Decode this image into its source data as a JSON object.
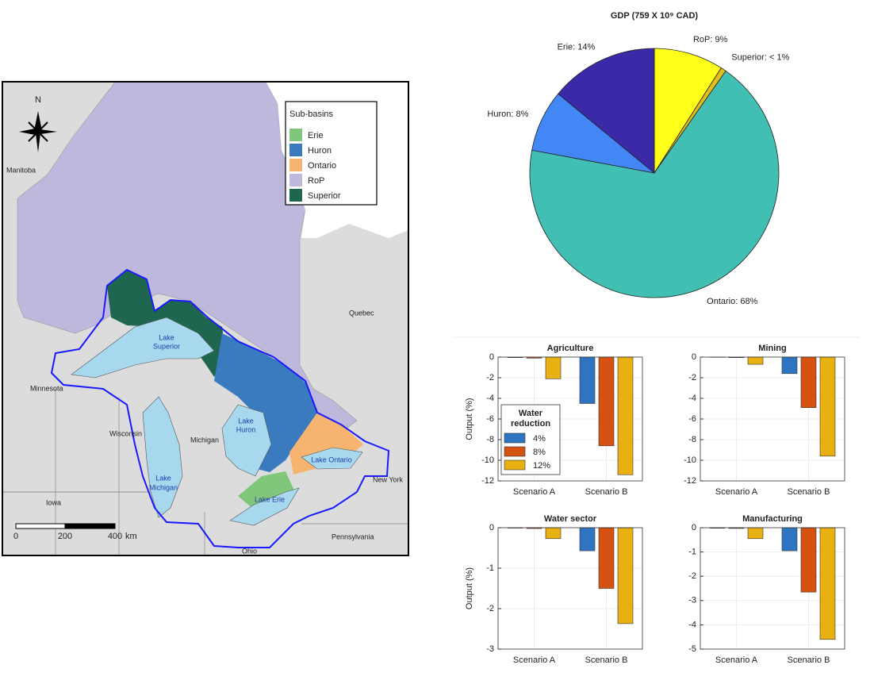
{
  "map": {
    "legend_title": "Sub-basins",
    "legend": [
      {
        "name": "Erie",
        "color": "#80c77c"
      },
      {
        "name": "Huron",
        "color": "#3a7bc0"
      },
      {
        "name": "Ontario",
        "color": "#f7b470"
      },
      {
        "name": "RoP",
        "color": "#bdb8dc"
      },
      {
        "name": "Superior",
        "color": "#1f6650"
      }
    ],
    "compass": "N",
    "places": [
      "Manitoba",
      "Quebec",
      "Minnesota",
      "Wisconsin",
      "Michigan",
      "Iowa",
      "New York",
      "Pennsylvania",
      "Ohio"
    ],
    "lakes": [
      [
        "Lake",
        "Superior"
      ],
      [
        "Lake",
        "Huron"
      ],
      [
        "Lake",
        "Michigan"
      ],
      [
        "Lake Ontario"
      ],
      [
        "Lake Erie"
      ]
    ],
    "scale": {
      "ticks": [
        0,
        200,
        400
      ],
      "unit": "km"
    }
  },
  "chart_data": [
    {
      "type": "pie",
      "title": "GDP (759 X 10⁹ CAD)",
      "categories": [
        "RoP",
        "Superior",
        "Ontario",
        "Huron",
        "Erie"
      ],
      "values": [
        9,
        0.7,
        68,
        8,
        14
      ],
      "value_labels": [
        "RoP: 9%",
        "Superior: < 1%",
        "Ontario: 68%",
        "Huron: 8%",
        "Erie: 14%"
      ],
      "colors": [
        "#ffff1a",
        "#e2bd1c",
        "#41bfb3",
        "#4287f5",
        "#3a2aa8"
      ]
    },
    {
      "type": "bar",
      "title": "Agriculture",
      "ylabel": "Output (%)",
      "categories": [
        "Scenario A",
        "Scenario B"
      ],
      "series": [
        {
          "name": "4%",
          "color": "#2e74c0",
          "values": [
            -0.05,
            -4.5
          ]
        },
        {
          "name": "8%",
          "color": "#d65210",
          "values": [
            -0.1,
            -8.6
          ]
        },
        {
          "name": "12%",
          "color": "#e8b010",
          "values": [
            -2.1,
            -11.4
          ]
        }
      ],
      "legend_title": [
        "Water",
        "reduction"
      ],
      "legend": "lower left",
      "ylim": [
        -12,
        0
      ],
      "yticks": [
        0,
        -2,
        -4,
        -6,
        -8,
        -10,
        -12
      ],
      "grid": true
    },
    {
      "type": "bar",
      "title": "Mining",
      "categories": [
        "Scenario A",
        "Scenario B"
      ],
      "series": [
        {
          "color": "#2e74c0",
          "values": [
            -0.02,
            -1.6
          ]
        },
        {
          "color": "#d65210",
          "values": [
            -0.05,
            -4.9
          ]
        },
        {
          "color": "#e8b010",
          "values": [
            -0.7,
            -9.6
          ]
        }
      ],
      "ylim": [
        -12,
        0
      ],
      "yticks": [
        0,
        -2,
        -4,
        -6,
        -8,
        -10,
        -12
      ],
      "grid": true
    },
    {
      "type": "bar",
      "title": "Water sector",
      "ylabel": "Output (%)",
      "categories": [
        "Scenario A",
        "Scenario B"
      ],
      "series": [
        {
          "color": "#2e74c0",
          "values": [
            -0.01,
            -0.57
          ]
        },
        {
          "color": "#d65210",
          "values": [
            -0.02,
            -1.5
          ]
        },
        {
          "color": "#e8b010",
          "values": [
            -0.27,
            -2.37
          ]
        }
      ],
      "ylim": [
        -3,
        0
      ],
      "yticks": [
        0,
        -1,
        -2,
        -3
      ],
      "grid": true
    },
    {
      "type": "bar",
      "title": "Manufacturing",
      "categories": [
        "Scenario A",
        "Scenario B"
      ],
      "series": [
        {
          "color": "#2e74c0",
          "values": [
            -0.02,
            -0.95
          ]
        },
        {
          "color": "#d65210",
          "values": [
            -0.03,
            -2.65
          ]
        },
        {
          "color": "#e8b010",
          "values": [
            -0.45,
            -4.6
          ]
        }
      ],
      "ylim": [
        -5,
        0
      ],
      "yticks": [
        0,
        -1,
        -2,
        -3,
        -4,
        -5
      ],
      "grid": true
    }
  ]
}
